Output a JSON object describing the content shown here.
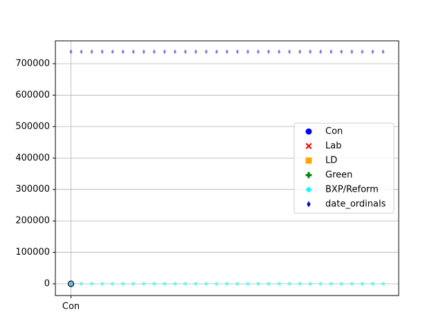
{
  "chart_data": {
    "type": "scatter",
    "x": [
      0,
      1,
      2,
      3,
      4,
      5,
      6,
      7,
      8,
      9,
      10,
      11,
      12,
      13,
      14,
      15,
      16,
      17,
      18,
      19,
      20,
      21,
      22,
      23,
      24,
      25,
      26,
      27,
      28,
      29,
      30
    ],
    "xlim": [
      -1.5,
      31.5
    ],
    "xticks": [
      {
        "value": 0,
        "label": "Con"
      }
    ],
    "ylim": [
      -37400,
      772600
    ],
    "yticks": [
      0,
      100000,
      200000,
      300000,
      400000,
      500000,
      600000,
      700000
    ],
    "grid": true,
    "legend": "right",
    "series": [
      {
        "name": "Con",
        "color": "#0000ff",
        "marker": "o",
        "values": [
          0,
          null,
          null,
          null,
          null,
          null,
          null,
          null,
          null,
          null,
          null,
          null,
          null,
          null,
          null,
          null,
          null,
          null,
          null,
          null,
          null,
          null,
          null,
          null,
          null,
          null,
          null,
          null,
          null,
          null,
          null
        ]
      },
      {
        "name": "Lab",
        "color": "#ff0000",
        "marker": "X",
        "values": [
          null,
          null,
          null,
          null,
          null,
          null,
          null,
          null,
          null,
          null,
          null,
          null,
          null,
          null,
          null,
          null,
          null,
          null,
          null,
          null,
          null,
          null,
          null,
          null,
          null,
          null,
          null,
          null,
          null,
          null,
          null
        ]
      },
      {
        "name": "LD",
        "color": "#ffa500",
        "marker": "s",
        "values": [
          null,
          null,
          null,
          null,
          null,
          null,
          null,
          null,
          null,
          null,
          null,
          null,
          null,
          null,
          null,
          null,
          null,
          null,
          null,
          null,
          null,
          null,
          null,
          null,
          null,
          null,
          null,
          null,
          null,
          null,
          null
        ]
      },
      {
        "name": "Green",
        "color": "#008000",
        "marker": "P",
        "values": [
          null,
          null,
          null,
          null,
          null,
          null,
          null,
          null,
          null,
          null,
          null,
          null,
          null,
          null,
          null,
          null,
          null,
          null,
          null,
          null,
          null,
          null,
          null,
          null,
          null,
          null,
          null,
          null,
          null,
          null,
          null
        ]
      },
      {
        "name": "BXP/Reform",
        "color": "#00ffff",
        "marker": "D",
        "values": [
          2,
          2,
          2,
          2,
          2,
          2,
          2,
          2,
          2,
          2,
          2,
          2,
          2,
          2,
          2,
          2,
          2,
          2,
          2,
          2,
          2,
          2,
          2,
          2,
          2,
          2,
          2,
          2,
          2,
          2,
          2
        ]
      },
      {
        "name": "date_ordinals",
        "color": "#0000cd",
        "marker": "d",
        "values": [
          738000,
          738000,
          738000,
          738000,
          738000,
          738000,
          738000,
          738000,
          738000,
          738000,
          738000,
          738000,
          738000,
          738000,
          738000,
          738000,
          738000,
          738000,
          738000,
          738000,
          738000,
          738000,
          738000,
          738000,
          738000,
          738000,
          738000,
          738000,
          738000,
          738000,
          738000
        ]
      }
    ]
  }
}
